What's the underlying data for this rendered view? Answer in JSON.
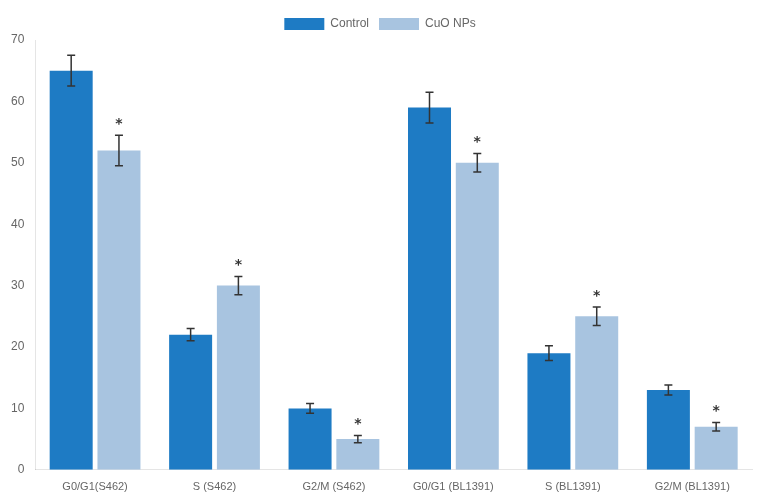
{
  "chart_data": {
    "type": "bar",
    "categories": [
      "G0/G1(S462)",
      "S (S462)",
      "G2/M (S462)",
      "G0/G1 (BL1391)",
      "S (BL1391)",
      "G2/M (BL1391)"
    ],
    "series": [
      {
        "name": "Control",
        "color": "#1E7BC4",
        "values": [
          65.0,
          22.0,
          10.0,
          59.0,
          19.0,
          13.0
        ],
        "errors": [
          2.5,
          1.0,
          0.8,
          2.5,
          1.2,
          0.8
        ]
      },
      {
        "name": "CuO NPs",
        "color": "#A8C4E0",
        "values": [
          52.0,
          30.0,
          5.0,
          50.0,
          25.0,
          7.0
        ],
        "errors": [
          2.5,
          1.5,
          0.6,
          1.5,
          1.5,
          0.7
        ],
        "annotation": "*"
      }
    ],
    "ylim": [
      0,
      70
    ],
    "yticks": [
      0,
      10,
      20,
      30,
      40,
      50,
      60,
      70
    ],
    "grid": false,
    "legend": "top"
  }
}
